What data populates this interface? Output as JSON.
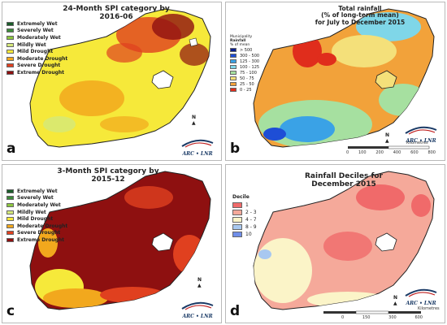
{
  "panels": {
    "a": {
      "label": "a",
      "title_line1": "24-Month SPI category by",
      "title_line2": "2016-06",
      "legend": [
        {
          "label": "Extremely Wet",
          "color": "#1a5c2a"
        },
        {
          "label": "Severely Wet",
          "color": "#3c8a3a"
        },
        {
          "label": "Moderately Wet",
          "color": "#8cc63e"
        },
        {
          "label": "Mildly Wet",
          "color": "#d4e87a"
        },
        {
          "label": "Mild Drought",
          "color": "#f6e93a"
        },
        {
          "label": "Moderate Drought",
          "color": "#f2a81d"
        },
        {
          "label": "Severe Drought",
          "color": "#e0401f"
        },
        {
          "label": "Extreme Drought",
          "color": "#8e1010"
        }
      ]
    },
    "b": {
      "label": "b",
      "title_line1": "Total rainfall",
      "title_line2": "(% of long-term mean)",
      "title_line3": "for July to December 2015",
      "legend_head1": "Municipality",
      "legend_head2": "Rainfall",
      "legend_head3": "% of mean",
      "legend": [
        {
          "label": "> 500",
          "color": "#0a1e8c"
        },
        {
          "label": "300 - 500",
          "color": "#1e4ed6"
        },
        {
          "label": "125 - 300",
          "color": "#3aa2e6"
        },
        {
          "label": "100 - 125",
          "color": "#7fd6e8"
        },
        {
          "label": "75 - 100",
          "color": "#a6e0a0"
        },
        {
          "label": "50 - 75",
          "color": "#f4e07a"
        },
        {
          "label": "25 - 50",
          "color": "#f2a23a"
        },
        {
          "label": "0 - 25",
          "color": "#e02d1c"
        }
      ],
      "scale_labels": [
        "0",
        "100",
        "200",
        "400",
        "600",
        "800"
      ],
      "scale_unit": "Kilometres"
    },
    "c": {
      "label": "c",
      "title_line1": "3-Month SPI category by",
      "title_line2": "2015-12",
      "legend": [
        {
          "label": "Extremely Wet",
          "color": "#1a5c2a"
        },
        {
          "label": "Severely Wet",
          "color": "#3c8a3a"
        },
        {
          "label": "Moderately Wet",
          "color": "#8cc63e"
        },
        {
          "label": "Mildly Wet",
          "color": "#d4e87a"
        },
        {
          "label": "Mild Drought",
          "color": "#f6e93a"
        },
        {
          "label": "Moderate Drought",
          "color": "#f2a81d"
        },
        {
          "label": "Severe Drought",
          "color": "#e0401f"
        },
        {
          "label": "Extreme Drought",
          "color": "#8e1010"
        }
      ]
    },
    "d": {
      "label": "d",
      "title_line1": "Rainfall Deciles for",
      "title_line2": "December 2015",
      "legend_head": "Decile",
      "legend": [
        {
          "label": "1",
          "color": "#f06a6a"
        },
        {
          "label": "2 - 3",
          "color": "#f5a99a"
        },
        {
          "label": "4 - 7",
          "color": "#fbf4c8"
        },
        {
          "label": "8 - 9",
          "color": "#a8c8f0"
        },
        {
          "label": "10",
          "color": "#6f8ee8"
        }
      ],
      "scale_labels": [
        "0",
        "150",
        "300",
        "600"
      ],
      "scale_unit": "Kilometres"
    }
  },
  "logo_text": "ARC • LNR",
  "north_label": "N",
  "colors": {
    "border": "#b9b9b9",
    "country_outline": "#222222"
  }
}
